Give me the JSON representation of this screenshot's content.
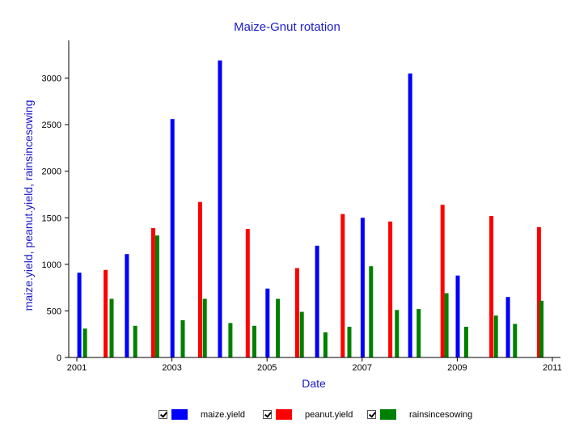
{
  "chart_data": {
    "type": "bar",
    "title": "Maize-Gnut rotation",
    "xlabel": "Date",
    "ylabel": "maize.yield, peanut.yield, rainsincesowing",
    "xlim": [
      2001.0,
      2011.0
    ],
    "ylim": [
      0,
      3300
    ],
    "x_ticks": [
      "2001",
      "2003",
      "2005",
      "2007",
      "2009",
      "2011"
    ],
    "y_ticks": [
      "0",
      "500",
      "1000",
      "1500",
      "2000",
      "2500",
      "3000"
    ],
    "grid": false,
    "legend_position": "bottom",
    "series": [
      {
        "name": "maize.yield",
        "color": "#0000ff",
        "x": [
          "2001-01-20",
          "2002-01-20",
          "2003-01-05",
          "2004-01-05",
          "2005-01-05",
          "2006-01-20",
          "2007-01-05",
          "2008-01-05",
          "2009-01-05",
          "2010-01-25"
        ],
        "values": [
          910,
          1110,
          2560,
          3190,
          740,
          1200,
          1500,
          3050,
          880,
          650
        ]
      },
      {
        "name": "peanut.yield",
        "color": "#ff0000",
        "x": [
          "2001-08-10",
          "2002-08-10",
          "2003-08-05",
          "2004-08-05",
          "2005-08-20",
          "2006-08-05",
          "2007-08-05",
          "2008-09-10",
          "2009-09-20",
          "2010-09-20"
        ],
        "values": [
          940,
          1390,
          1670,
          1380,
          960,
          1540,
          1460,
          1640,
          1520,
          1400
        ]
      },
      {
        "name": "rainsincesowing",
        "color": "#008000",
        "x": [
          "2001-03-05",
          "2001-09-25",
          "2002-03-25",
          "2002-09-10",
          "2003-03-25",
          "2003-09-10",
          "2004-03-25",
          "2004-09-25",
          "2005-03-25",
          "2005-09-25",
          "2006-03-25",
          "2006-09-25",
          "2007-03-10",
          "2007-09-25",
          "2008-03-10",
          "2008-10-10",
          "2009-03-10",
          "2009-10-25",
          "2010-03-20",
          "2010-10-10"
        ],
        "values": [
          310,
          630,
          340,
          1310,
          400,
          630,
          370,
          340,
          630,
          490,
          270,
          330,
          980,
          510,
          520,
          690,
          330,
          450,
          360,
          610
        ]
      }
    ]
  },
  "legend": {
    "items": [
      {
        "label": "maize.yield",
        "color": "#0000ff"
      },
      {
        "label": "peanut.yield",
        "color": "#ff0000"
      },
      {
        "label": "rainsincesowing",
        "color": "#008000"
      }
    ]
  }
}
